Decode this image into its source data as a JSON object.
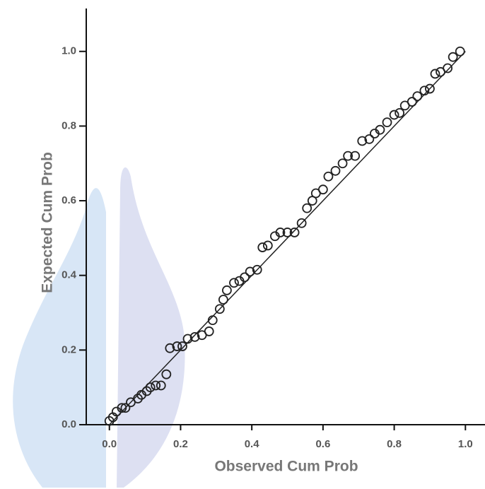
{
  "chart_data": {
    "type": "scatter",
    "xlabel": "Observed Cum Prob",
    "ylabel": "Expected Cum Prob",
    "xlim": [
      -0.065,
      1.055
    ],
    "ylim": [
      0,
      1.115
    ],
    "xticks": [
      {
        "value": 0,
        "label": "0.0"
      },
      {
        "value": 0.2,
        "label": "0.2"
      },
      {
        "value": 0.4,
        "label": "0.4"
      },
      {
        "value": 0.6,
        "label": "0.6"
      },
      {
        "value": 0.8,
        "label": "0.8"
      },
      {
        "value": 1,
        "label": "1.0"
      }
    ],
    "yticks": [
      {
        "value": 0,
        "label": "0.0"
      },
      {
        "value": 0.2,
        "label": "0.2"
      },
      {
        "value": 0.4,
        "label": "0.4"
      },
      {
        "value": 0.6,
        "label": "0.6"
      },
      {
        "value": 0.8,
        "label": "0.8"
      },
      {
        "value": 1,
        "label": "1.0"
      }
    ],
    "color": "#222222",
    "x": [
      0.0,
      0.01,
      0.02,
      0.035,
      0.045,
      0.06,
      0.08,
      0.09,
      0.105,
      0.115,
      0.13,
      0.145,
      0.16,
      0.17,
      0.19,
      0.205,
      0.22,
      0.24,
      0.26,
      0.28,
      0.29,
      0.31,
      0.32,
      0.33,
      0.35,
      0.365,
      0.38,
      0.395,
      0.415,
      0.43,
      0.445,
      0.465,
      0.48,
      0.5,
      0.52,
      0.54,
      0.555,
      0.57,
      0.58,
      0.6,
      0.615,
      0.635,
      0.655,
      0.67,
      0.69,
      0.71,
      0.73,
      0.745,
      0.76,
      0.78,
      0.8,
      0.815,
      0.83,
      0.85,
      0.865,
      0.885,
      0.9,
      0.915,
      0.93,
      0.95,
      0.965,
      0.985
    ],
    "y": [
      0.01,
      0.02,
      0.035,
      0.045,
      0.045,
      0.06,
      0.07,
      0.08,
      0.09,
      0.1,
      0.105,
      0.105,
      0.135,
      0.205,
      0.21,
      0.21,
      0.23,
      0.235,
      0.24,
      0.25,
      0.28,
      0.31,
      0.335,
      0.36,
      0.38,
      0.385,
      0.395,
      0.41,
      0.415,
      0.475,
      0.48,
      0.505,
      0.515,
      0.515,
      0.515,
      0.54,
      0.58,
      0.6,
      0.62,
      0.63,
      0.665,
      0.68,
      0.7,
      0.72,
      0.72,
      0.76,
      0.765,
      0.78,
      0.79,
      0.81,
      0.83,
      0.835,
      0.855,
      0.865,
      0.88,
      0.895,
      0.9,
      0.94,
      0.945,
      0.955,
      0.985,
      1.0
    ],
    "reference_line": {
      "x": [
        0,
        1
      ],
      "y": [
        0,
        1
      ]
    }
  }
}
